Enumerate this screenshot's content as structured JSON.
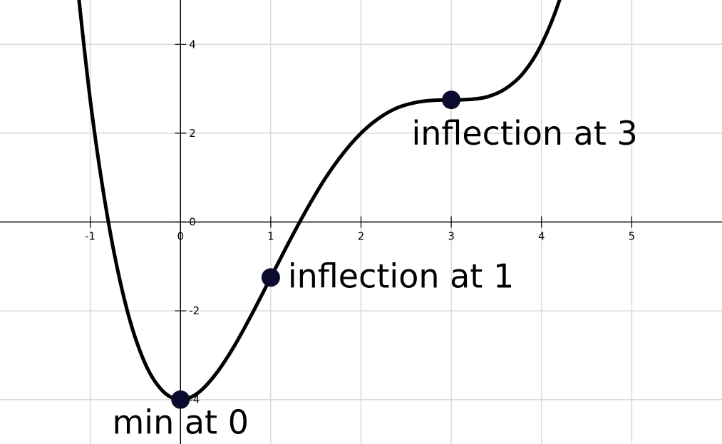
{
  "chart_data": {
    "type": "line",
    "x": [
      -1.2,
      -1.0,
      -0.8,
      -0.6,
      -0.4,
      -0.2,
      0,
      0.2,
      0.4,
      0.6,
      0.8,
      1.0,
      1.2,
      1.4,
      1.6,
      1.8,
      2.0,
      2.2,
      2.4,
      2.6,
      2.8,
      3.0,
      3.2,
      3.4,
      3.6,
      3.8,
      4.0,
      4.2,
      4.4
    ],
    "series": [
      {
        "color": "#000000",
        "values": [
          6.45,
          2.75,
          0.01,
          -1.92,
          -3.15,
          -3.8,
          -4,
          -3.84,
          -3.4,
          -2.78,
          -2.04,
          -1.25,
          -0.46,
          0.29,
          0.97,
          1.54,
          2.0,
          2.34,
          2.57,
          2.69,
          2.74,
          2.75,
          2.76,
          2.82,
          3.0,
          3.36,
          4.0,
          5.0,
          6.45
        ]
      }
    ],
    "annotations": [
      {
        "x": 0,
        "y": -4,
        "label": "min at 0"
      },
      {
        "x": 1,
        "y": -1.25,
        "label": "inflection at 1"
      },
      {
        "x": 3,
        "y": 2.75,
        "label": "inflection at 3"
      }
    ],
    "point_color": "#0b0b2e",
    "xlim": [
      -2,
      6
    ],
    "ylim": [
      -5,
      5
    ],
    "xticks": [
      -1,
      0,
      1,
      2,
      3,
      4,
      5
    ],
    "yticks": [
      -4,
      -2,
      0,
      2,
      4
    ],
    "grid": true
  }
}
